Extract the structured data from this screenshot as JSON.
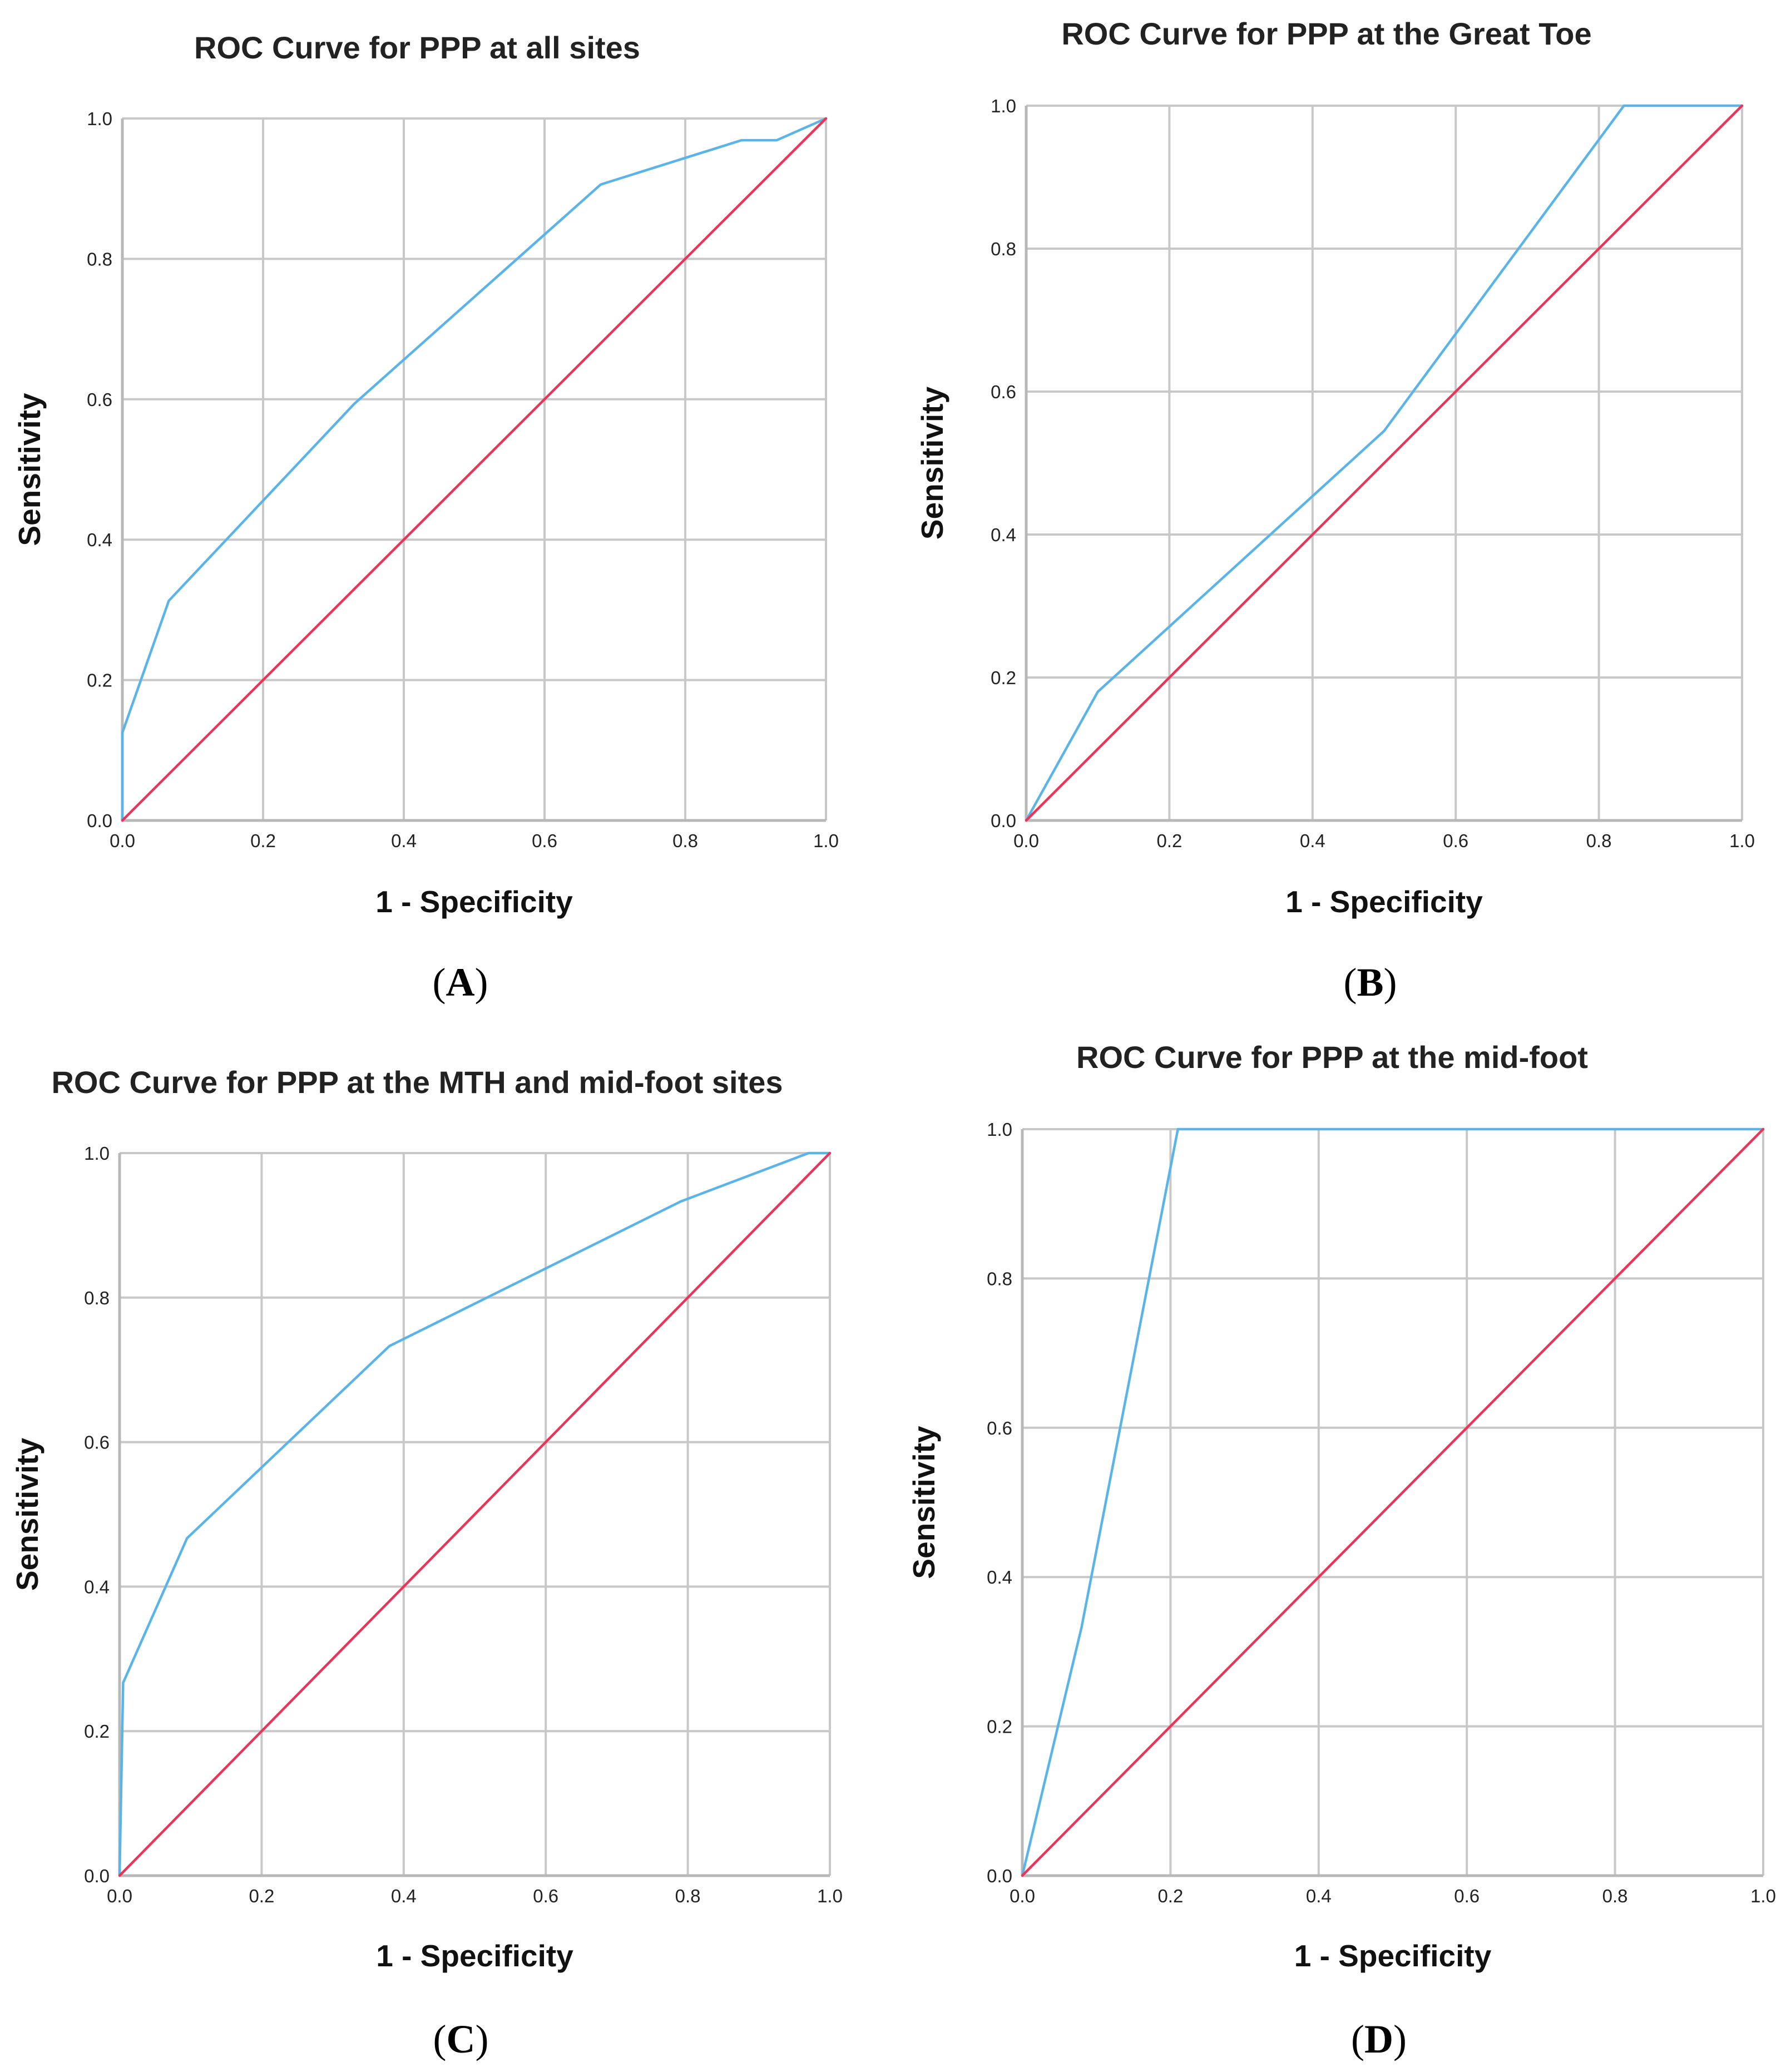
{
  "chart_data": [
    {
      "id": "A",
      "type": "line",
      "title": "ROC Curve for PPP at all sites",
      "xlabel": "1 - Specificity",
      "ylabel": "Sensitivity",
      "panel_label": "A",
      "xlim": [
        0,
        1
      ],
      "ylim": [
        0,
        1
      ],
      "grid": true,
      "x_ticks": [
        "0.0",
        "0.2",
        "0.4",
        "0.6",
        "0.8",
        "1.0"
      ],
      "y_ticks": [
        "0.0",
        "0.2",
        "0.4",
        "0.6",
        "0.8",
        "1.0"
      ],
      "series": [
        {
          "name": "ROC curve",
          "color": "#5ab4e8",
          "points": [
            [
              0,
              0
            ],
            [
              0,
              0.125
            ],
            [
              0.066,
              0.313
            ],
            [
              0.33,
              0.594
            ],
            [
              0.68,
              0.906
            ],
            [
              0.88,
              0.969
            ],
            [
              0.93,
              0.969
            ],
            [
              1,
              1
            ]
          ]
        },
        {
          "name": "Reference line",
          "color": "#e8365a",
          "points": [
            [
              0,
              0
            ],
            [
              1,
              1
            ]
          ]
        }
      ]
    },
    {
      "id": "B",
      "type": "line",
      "title": "ROC Curve for PPP at the Great Toe",
      "xlabel": "1 - Specificity",
      "ylabel": "Sensitivity",
      "panel_label": "B",
      "xlim": [
        0,
        1
      ],
      "ylim": [
        0,
        1
      ],
      "grid": true,
      "x_ticks": [
        "0.0",
        "0.2",
        "0.4",
        "0.6",
        "0.8",
        "1.0"
      ],
      "y_ticks": [
        "0.0",
        "0.2",
        "0.4",
        "0.6",
        "0.8",
        "1.0"
      ],
      "series": [
        {
          "name": "ROC curve",
          "color": "#5ab4e8",
          "points": [
            [
              0,
              0
            ],
            [
              0.1,
              0.18
            ],
            [
              0.5,
              0.545
            ],
            [
              0.835,
              1
            ],
            [
              1,
              1
            ]
          ]
        },
        {
          "name": "Reference line",
          "color": "#e8365a",
          "points": [
            [
              0,
              0
            ],
            [
              1,
              1
            ]
          ]
        }
      ]
    },
    {
      "id": "C",
      "type": "line",
      "title": "ROC Curve for PPP at the MTH and mid-foot sites",
      "xlabel": "1 - Specificity",
      "ylabel": "Sensitivity",
      "panel_label": "C",
      "xlim": [
        0,
        1
      ],
      "ylim": [
        0,
        1
      ],
      "grid": true,
      "x_ticks": [
        "0.0",
        "0.2",
        "0.4",
        "0.6",
        "0.8",
        "1.0"
      ],
      "y_ticks": [
        "0.0",
        "0.2",
        "0.4",
        "0.6",
        "0.8",
        "1.0"
      ],
      "series": [
        {
          "name": "ROC curve",
          "color": "#5ab4e8",
          "points": [
            [
              0,
              0
            ],
            [
              0.005,
              0.267
            ],
            [
              0.095,
              0.467
            ],
            [
              0.38,
              0.733
            ],
            [
              0.79,
              0.933
            ],
            [
              0.97,
              1
            ],
            [
              1,
              1
            ]
          ]
        },
        {
          "name": "Reference line",
          "color": "#e8365a",
          "points": [
            [
              0,
              0
            ],
            [
              1,
              1
            ]
          ]
        }
      ]
    },
    {
      "id": "D",
      "type": "line",
      "title": "ROC Curve for PPP at the mid-foot",
      "xlabel": "1 - Specificity",
      "ylabel": "Sensitivity",
      "panel_label": "D",
      "xlim": [
        0,
        1
      ],
      "ylim": [
        0,
        1
      ],
      "grid": true,
      "x_ticks": [
        "0.0",
        "0.2",
        "0.4",
        "0.6",
        "0.8",
        "1.0"
      ],
      "y_ticks": [
        "0.0",
        "0.2",
        "0.4",
        "0.6",
        "0.8",
        "1.0"
      ],
      "series": [
        {
          "name": "ROC curve",
          "color": "#5ab4e8",
          "points": [
            [
              0,
              0
            ],
            [
              0.08,
              0.333
            ],
            [
              0.21,
              1
            ],
            [
              1,
              1
            ]
          ]
        },
        {
          "name": "Reference line",
          "color": "#e8365a",
          "points": [
            [
              0,
              0
            ],
            [
              1,
              1
            ]
          ]
        }
      ]
    }
  ]
}
